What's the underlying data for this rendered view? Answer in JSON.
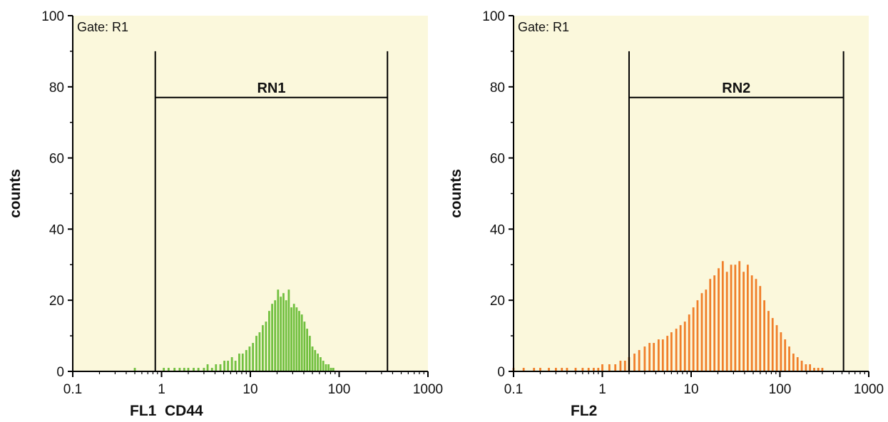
{
  "colors": {
    "plot_background": "#fbf8dc",
    "axis": "#000000",
    "histogram_left": "#72c040",
    "histogram_right": "#f07f2a"
  },
  "chart_data": [
    {
      "type": "bar",
      "title": "",
      "annotation": "Gate: R1",
      "xlabel": "FL1  CD44",
      "ylabel": "counts",
      "x_scale": "log",
      "xlim": [
        0.1,
        1000
      ],
      "ylim": [
        0,
        100
      ],
      "x_ticks": [
        "0.1",
        "1",
        "10",
        "100",
        "1000"
      ],
      "y_ticks": [
        "0",
        "20",
        "40",
        "60",
        "80",
        "100"
      ],
      "grid": false,
      "region": {
        "label": "RN1",
        "x_start": 0.85,
        "x_end": 350,
        "level": 77
      },
      "series": [
        {
          "color": "#72c040",
          "x": [
            0.5,
            1.06,
            1.2,
            1.4,
            1.6,
            1.8,
            2.0,
            2.3,
            2.6,
            3.0,
            3.3,
            3.7,
            4.1,
            4.6,
            5.1,
            5.6,
            6.2,
            6.8,
            7.5,
            8.2,
            9.0,
            9.8,
            10.7,
            11.7,
            12.7,
            13.8,
            15.0,
            16.3,
            17.6,
            19.0,
            20.5,
            22.0,
            23.6,
            25.3,
            27.1,
            29.0,
            31.0,
            33.2,
            35.5,
            38.0,
            40.7,
            43.6,
            46.7,
            50.0,
            53.6,
            57.5,
            61.7,
            66.2,
            71.0,
            76.0,
            81.0,
            86.0
          ],
          "values": [
            1,
            1,
            1,
            1,
            1,
            1,
            1,
            1,
            1,
            1,
            2,
            1,
            2,
            2,
            3,
            3,
            4,
            3,
            5,
            5,
            6,
            7,
            8,
            10,
            11,
            13,
            14,
            17,
            19,
            20,
            23,
            21,
            22,
            20,
            23,
            18,
            19,
            18,
            17,
            16,
            14,
            12,
            10,
            7,
            6,
            5,
            4,
            3,
            2,
            2,
            1,
            1
          ]
        }
      ]
    },
    {
      "type": "bar",
      "title": "",
      "annotation": "Gate: R1",
      "xlabel": "FL2",
      "ylabel": "counts",
      "x_scale": "log",
      "xlim": [
        0.1,
        1000
      ],
      "ylim": [
        0,
        100
      ],
      "x_ticks": [
        "0.1",
        "1",
        "10",
        "100",
        "1000"
      ],
      "y_ticks": [
        "0",
        "20",
        "40",
        "60",
        "80",
        "100"
      ],
      "grid": false,
      "region": {
        "label": "RN2",
        "x_start": 2.0,
        "x_end": 520,
        "level": 77
      },
      "series": [
        {
          "color": "#f07f2a",
          "x": [
            0.1,
            0.13,
            0.17,
            0.2,
            0.25,
            0.3,
            0.35,
            0.4,
            0.5,
            0.6,
            0.7,
            0.8,
            0.9,
            1.0,
            1.2,
            1.4,
            1.6,
            1.8,
            2.0,
            2.3,
            2.6,
            3.0,
            3.4,
            3.8,
            4.3,
            4.8,
            5.4,
            6.0,
            6.8,
            7.6,
            8.5,
            9.5,
            10.6,
            11.8,
            13.2,
            14.7,
            16.4,
            18.3,
            20.4,
            22.7,
            25.3,
            28.2,
            31.4,
            35.0,
            39.0,
            43.4,
            48.3,
            53.8,
            59.9,
            66.7,
            74.3,
            82.7,
            92.1,
            102.6,
            114.3,
            127.3,
            141.8,
            158.0,
            176.0,
            196.0,
            218.0,
            243.0,
            270.0,
            300.0
          ],
          "values": [
            1,
            1,
            1,
            1,
            1,
            1,
            1,
            1,
            1,
            1,
            1,
            1,
            1,
            2,
            2,
            2,
            3,
            3,
            4,
            5,
            6,
            7,
            8,
            8,
            9,
            9,
            10,
            11,
            12,
            13,
            14,
            16,
            18,
            20,
            22,
            23,
            26,
            27,
            29,
            31,
            28,
            30,
            30,
            31,
            28,
            30,
            27,
            26,
            24,
            20,
            17,
            15,
            13,
            11,
            9,
            7,
            5,
            4,
            3,
            2,
            2,
            1,
            1,
            1
          ]
        }
      ]
    }
  ]
}
